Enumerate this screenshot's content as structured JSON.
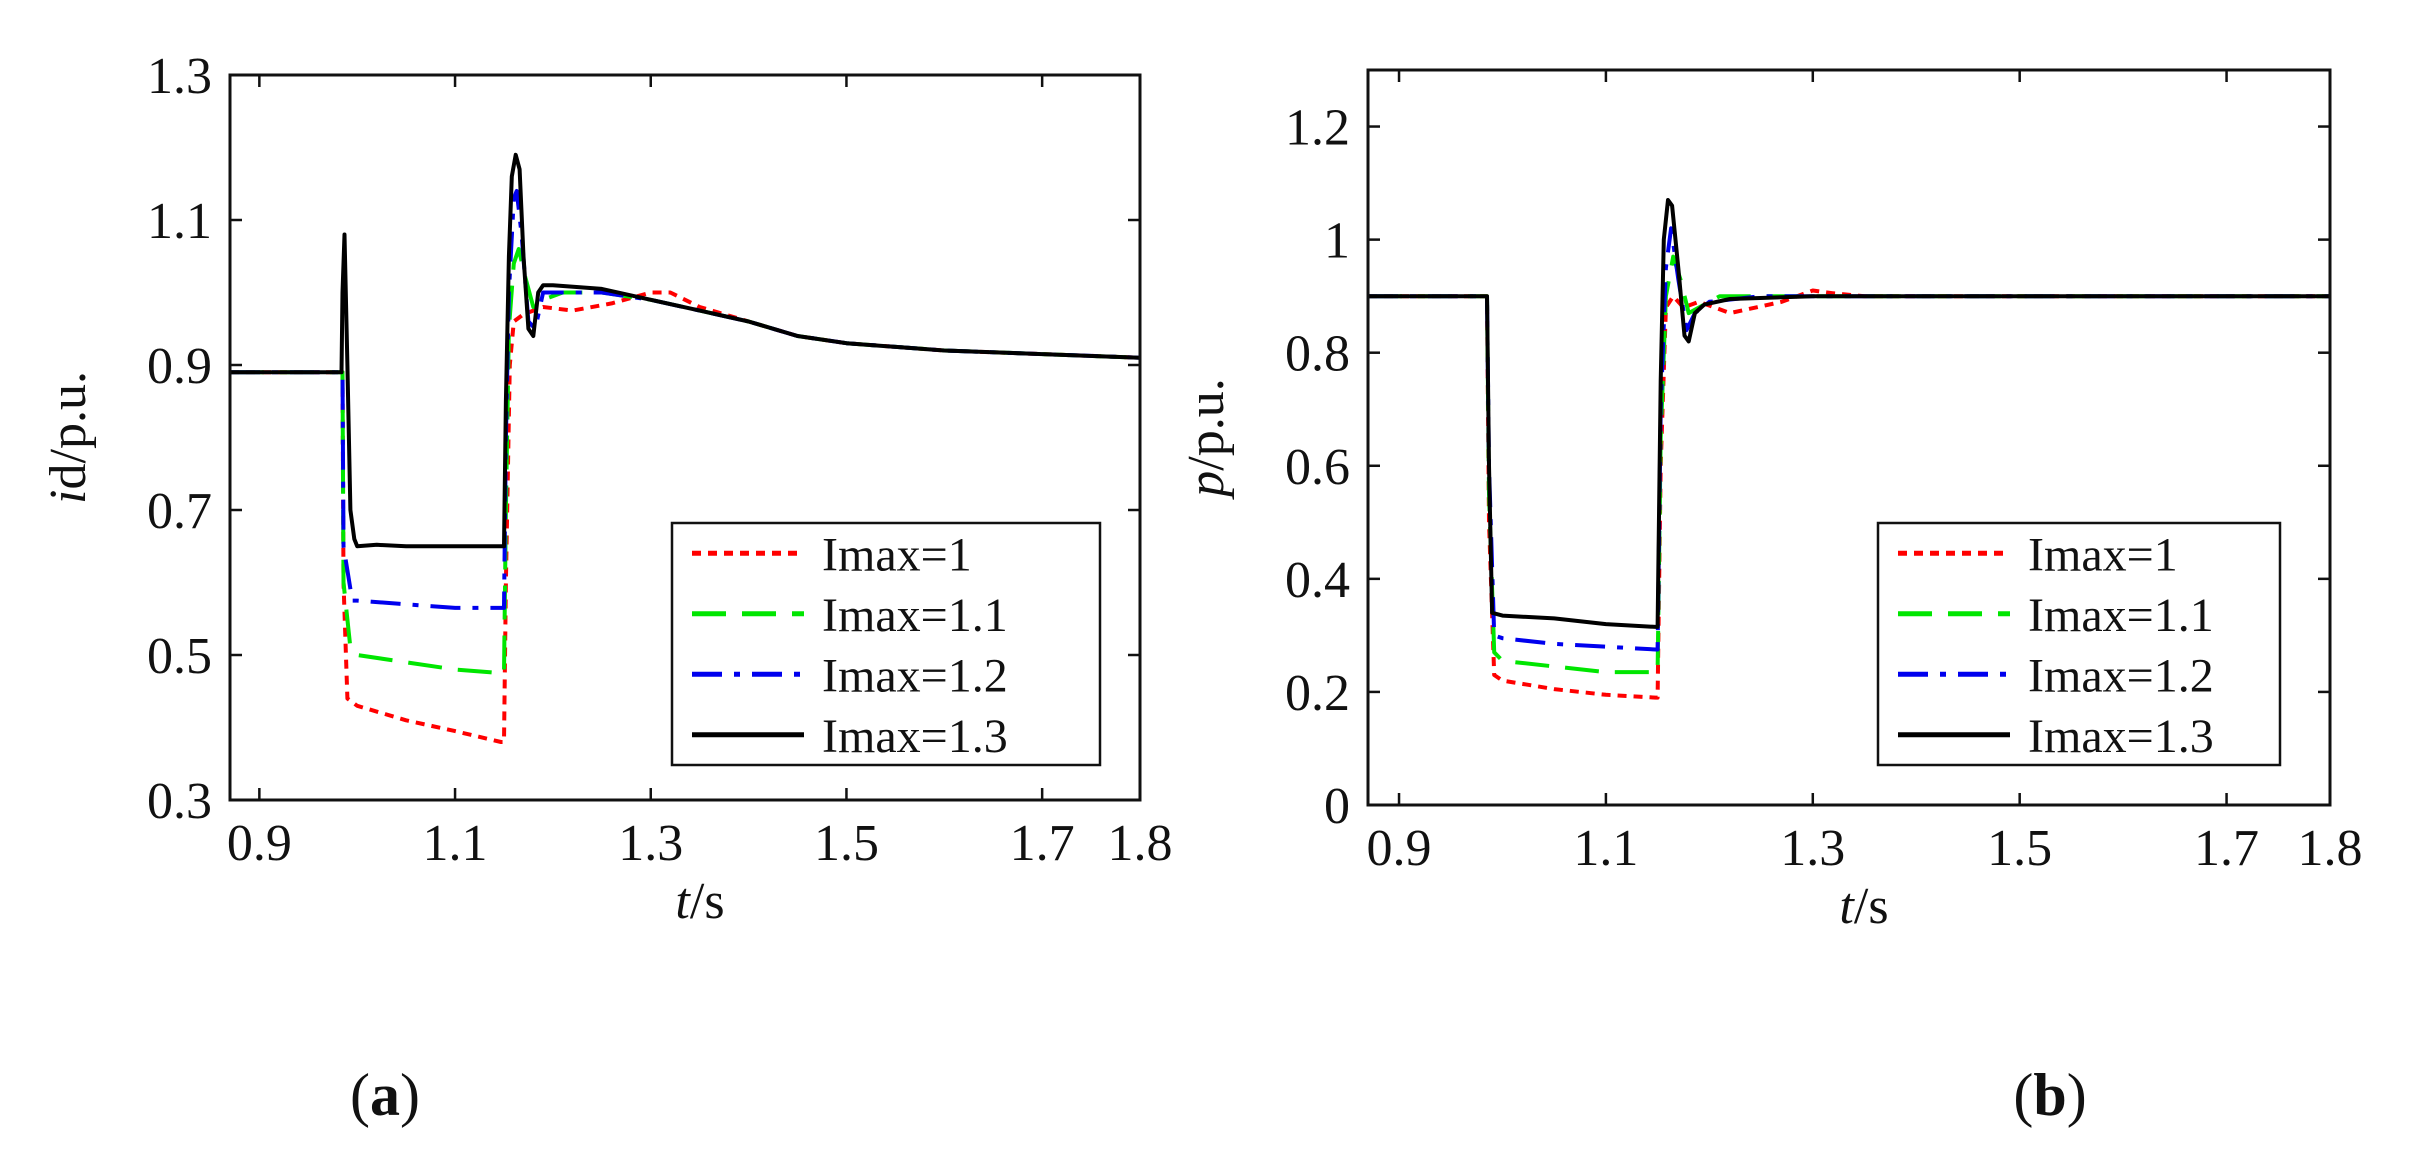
{
  "chart_data": [
    {
      "type": "line",
      "panel": "(a)",
      "panel_letter": "a",
      "ylabel_italic": "i",
      "ylabel_subscript": "d",
      "ylabel_unit": "/p.u.",
      "xlabel_italic": "t",
      "xlabel_unit": "/s",
      "xlim": [
        0.87,
        1.8
      ],
      "ylim": [
        0.3,
        1.3
      ],
      "xticks": [
        0.9,
        1.1,
        1.3,
        1.5,
        1.7,
        1.8
      ],
      "xtick_labels": [
        "0.9",
        "1.1",
        "1.3",
        "1.5",
        "1.7",
        "1.8"
      ],
      "yticks": [
        0.3,
        0.5,
        0.7,
        0.9,
        1.1,
        1.3
      ],
      "ytick_labels": [
        "0.3",
        "0.5",
        "0.7",
        "0.9",
        "1.1",
        "1.3"
      ],
      "grid": false,
      "legend_position": "lower-right",
      "series": [
        {
          "name": "Imax=1",
          "color": "#ff0000",
          "dash": "dotted",
          "points": [
            [
              0.87,
              0.89
            ],
            [
              0.985,
              0.89
            ],
            [
              0.986,
              0.6
            ],
            [
              0.99,
              0.44
            ],
            [
              1.0,
              0.43
            ],
            [
              1.05,
              0.41
            ],
            [
              1.1,
              0.395
            ],
            [
              1.147,
              0.38
            ],
            [
              1.15,
              0.38
            ],
            [
              1.152,
              0.6
            ],
            [
              1.156,
              0.9
            ],
            [
              1.16,
              0.96
            ],
            [
              1.17,
              0.97
            ],
            [
              1.19,
              0.98
            ],
            [
              1.22,
              0.975
            ],
            [
              1.26,
              0.985
            ],
            [
              1.3,
              1.0
            ],
            [
              1.32,
              1.0
            ],
            [
              1.35,
              0.98
            ],
            [
              1.4,
              0.96
            ],
            [
              1.45,
              0.94
            ],
            [
              1.5,
              0.93
            ],
            [
              1.6,
              0.92
            ],
            [
              1.7,
              0.915
            ],
            [
              1.8,
              0.91
            ]
          ]
        },
        {
          "name": "Imax=1.1",
          "color": "#00e600",
          "dash": "dashed",
          "points": [
            [
              0.87,
              0.89
            ],
            [
              0.985,
              0.89
            ],
            [
              0.986,
              0.6
            ],
            [
              0.993,
              0.51
            ],
            [
              1.0,
              0.5
            ],
            [
              1.05,
              0.49
            ],
            [
              1.1,
              0.48
            ],
            [
              1.147,
              0.475
            ],
            [
              1.15,
              0.475
            ],
            [
              1.152,
              0.7
            ],
            [
              1.155,
              0.95
            ],
            [
              1.16,
              1.04
            ],
            [
              1.165,
              1.06
            ],
            [
              1.172,
              1.02
            ],
            [
              1.18,
              0.98
            ],
            [
              1.19,
              0.99
            ],
            [
              1.21,
              1.0
            ],
            [
              1.25,
              1.0
            ],
            [
              1.3,
              0.99
            ],
            [
              1.35,
              0.975
            ],
            [
              1.4,
              0.96
            ],
            [
              1.45,
              0.94
            ],
            [
              1.5,
              0.93
            ],
            [
              1.6,
              0.92
            ],
            [
              1.7,
              0.915
            ],
            [
              1.8,
              0.91
            ]
          ]
        },
        {
          "name": "Imax=1.2",
          "color": "#0000ee",
          "dash": "dashdot",
          "points": [
            [
              0.87,
              0.89
            ],
            [
              0.985,
              0.89
            ],
            [
              0.986,
              0.65
            ],
            [
              0.995,
              0.575
            ],
            [
              1.0,
              0.575
            ],
            [
              1.05,
              0.57
            ],
            [
              1.1,
              0.565
            ],
            [
              1.147,
              0.565
            ],
            [
              1.15,
              0.565
            ],
            [
              1.152,
              0.8
            ],
            [
              1.155,
              1.0
            ],
            [
              1.16,
              1.13
            ],
            [
              1.163,
              1.14
            ],
            [
              1.168,
              1.08
            ],
            [
              1.175,
              0.96
            ],
            [
              1.182,
              0.95
            ],
            [
              1.19,
              1.0
            ],
            [
              1.2,
              1.0
            ],
            [
              1.25,
              1.0
            ],
            [
              1.3,
              0.99
            ],
            [
              1.35,
              0.975
            ],
            [
              1.4,
              0.96
            ],
            [
              1.45,
              0.94
            ],
            [
              1.5,
              0.93
            ],
            [
              1.6,
              0.92
            ],
            [
              1.7,
              0.915
            ],
            [
              1.8,
              0.91
            ]
          ]
        },
        {
          "name": "Imax=1.3",
          "color": "#000000",
          "dash": "solid",
          "points": [
            [
              0.87,
              0.89
            ],
            [
              0.984,
              0.89
            ],
            [
              0.985,
              1.0
            ],
            [
              0.987,
              1.08
            ],
            [
              0.99,
              0.9
            ],
            [
              0.993,
              0.7
            ],
            [
              0.997,
              0.66
            ],
            [
              1.0,
              0.65
            ],
            [
              1.02,
              0.652
            ],
            [
              1.05,
              0.65
            ],
            [
              1.1,
              0.65
            ],
            [
              1.148,
              0.65
            ],
            [
              1.15,
              0.65
            ],
            [
              1.152,
              0.85
            ],
            [
              1.155,
              1.05
            ],
            [
              1.158,
              1.16
            ],
            [
              1.162,
              1.19
            ],
            [
              1.166,
              1.17
            ],
            [
              1.17,
              1.05
            ],
            [
              1.175,
              0.95
            ],
            [
              1.18,
              0.94
            ],
            [
              1.185,
              1.0
            ],
            [
              1.19,
              1.01
            ],
            [
              1.2,
              1.01
            ],
            [
              1.25,
              1.005
            ],
            [
              1.3,
              0.99
            ],
            [
              1.35,
              0.975
            ],
            [
              1.4,
              0.96
            ],
            [
              1.45,
              0.94
            ],
            [
              1.5,
              0.93
            ],
            [
              1.6,
              0.92
            ],
            [
              1.7,
              0.915
            ],
            [
              1.8,
              0.91
            ]
          ]
        }
      ]
    },
    {
      "type": "line",
      "panel": "(b)",
      "panel_letter": "b",
      "ylabel_italic": "p",
      "ylabel_subscript": "",
      "ylabel_unit": "/p.u.",
      "xlabel_italic": "t",
      "xlabel_unit": "/s",
      "xlim": [
        0.87,
        1.8
      ],
      "ylim": [
        0,
        1.3
      ],
      "xticks": [
        0.9,
        1.1,
        1.3,
        1.5,
        1.7,
        1.8
      ],
      "xtick_labels": [
        "0.9",
        "1.1",
        "1.3",
        "1.5",
        "1.7",
        "1.8"
      ],
      "yticks": [
        0,
        0.2,
        0.4,
        0.6,
        0.8,
        1.0,
        1.2
      ],
      "ytick_labels": [
        "0",
        "0.2",
        "0.4",
        "0.6",
        "0.8",
        "1",
        "1.2"
      ],
      "grid": false,
      "legend_position": "lower-right",
      "series": [
        {
          "name": "Imax=1",
          "color": "#ff0000",
          "dash": "dotted",
          "points": [
            [
              0.87,
              0.9
            ],
            [
              0.985,
              0.9
            ],
            [
              0.987,
              0.5
            ],
            [
              0.992,
              0.23
            ],
            [
              1.0,
              0.22
            ],
            [
              1.05,
              0.205
            ],
            [
              1.1,
              0.195
            ],
            [
              1.148,
              0.19
            ],
            [
              1.15,
              0.19
            ],
            [
              1.153,
              0.6
            ],
            [
              1.158,
              0.88
            ],
            [
              1.165,
              0.9
            ],
            [
              1.175,
              0.88
            ],
            [
              1.19,
              0.89
            ],
            [
              1.22,
              0.87
            ],
            [
              1.27,
              0.89
            ],
            [
              1.3,
              0.91
            ],
            [
              1.32,
              0.905
            ],
            [
              1.35,
              0.9
            ],
            [
              1.8,
              0.9
            ]
          ]
        },
        {
          "name": "Imax=1.1",
          "color": "#00e600",
          "dash": "dashed",
          "points": [
            [
              0.87,
              0.9
            ],
            [
              0.985,
              0.9
            ],
            [
              0.987,
              0.55
            ],
            [
              0.992,
              0.27
            ],
            [
              1.0,
              0.255
            ],
            [
              1.05,
              0.245
            ],
            [
              1.1,
              0.235
            ],
            [
              1.148,
              0.235
            ],
            [
              1.15,
              0.235
            ],
            [
              1.153,
              0.65
            ],
            [
              1.158,
              0.9
            ],
            [
              1.165,
              0.97
            ],
            [
              1.172,
              0.93
            ],
            [
              1.18,
              0.87
            ],
            [
              1.19,
              0.88
            ],
            [
              1.21,
              0.9
            ],
            [
              1.25,
              0.9
            ],
            [
              1.3,
              0.9
            ],
            [
              1.8,
              0.9
            ]
          ]
        },
        {
          "name": "Imax=1.2",
          "color": "#0000ee",
          "dash": "dashdot",
          "points": [
            [
              0.87,
              0.9
            ],
            [
              0.985,
              0.9
            ],
            [
              0.987,
              0.6
            ],
            [
              0.992,
              0.3
            ],
            [
              1.0,
              0.295
            ],
            [
              1.05,
              0.285
            ],
            [
              1.1,
              0.28
            ],
            [
              1.148,
              0.275
            ],
            [
              1.15,
              0.275
            ],
            [
              1.153,
              0.7
            ],
            [
              1.158,
              0.95
            ],
            [
              1.163,
              1.02
            ],
            [
              1.17,
              0.93
            ],
            [
              1.178,
              0.84
            ],
            [
              1.186,
              0.87
            ],
            [
              1.2,
              0.89
            ],
            [
              1.25,
              0.9
            ],
            [
              1.3,
              0.9
            ],
            [
              1.8,
              0.9
            ]
          ]
        },
        {
          "name": "Imax=1.3",
          "color": "#000000",
          "dash": "solid",
          "points": [
            [
              0.87,
              0.9
            ],
            [
              0.985,
              0.9
            ],
            [
              0.987,
              0.6
            ],
            [
              0.99,
              0.34
            ],
            [
              1.0,
              0.335
            ],
            [
              1.05,
              0.33
            ],
            [
              1.1,
              0.32
            ],
            [
              1.148,
              0.315
            ],
            [
              1.15,
              0.315
            ],
            [
              1.153,
              0.75
            ],
            [
              1.156,
              1.0
            ],
            [
              1.16,
              1.07
            ],
            [
              1.164,
              1.06
            ],
            [
              1.17,
              0.95
            ],
            [
              1.176,
              0.83
            ],
            [
              1.18,
              0.82
            ],
            [
              1.186,
              0.87
            ],
            [
              1.195,
              0.885
            ],
            [
              1.22,
              0.895
            ],
            [
              1.3,
              0.9
            ],
            [
              1.8,
              0.9
            ]
          ]
        }
      ]
    }
  ]
}
